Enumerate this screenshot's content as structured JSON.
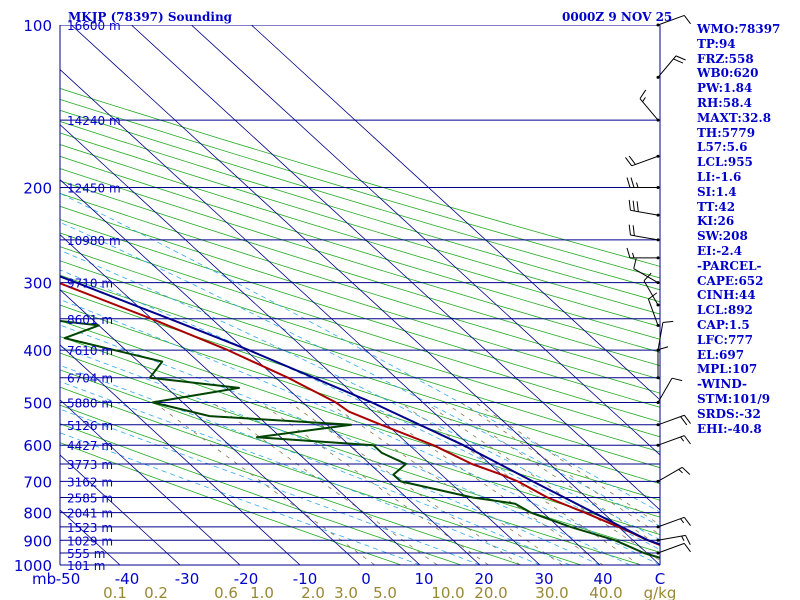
{
  "chart_data": {
    "type": "skew-t",
    "title": "MKJP (78397) Sounding",
    "datetime": "0000Z  9 NOV 25",
    "pressure_axis_title": "mb",
    "pressure_levels": [
      100,
      200,
      300,
      400,
      500,
      600,
      700,
      800,
      900,
      1000
    ],
    "height_labels": [
      {
        "p": 100,
        "label": "16600 m"
      },
      {
        "p": 150,
        "label": "14240 m"
      },
      {
        "p": 200,
        "label": "12450 m"
      },
      {
        "p": 250,
        "label": "10980 m"
      },
      {
        "p": 300,
        "label": "9710 m"
      },
      {
        "p": 350,
        "label": "8601 m"
      },
      {
        "p": 400,
        "label": "7610 m"
      },
      {
        "p": 450,
        "label": "6704 m"
      },
      {
        "p": 500,
        "label": "5880 m"
      },
      {
        "p": 550,
        "label": "5126 m"
      },
      {
        "p": 600,
        "label": "4427 m"
      },
      {
        "p": 650,
        "label": "3773 m"
      },
      {
        "p": 700,
        "label": "3162 m"
      },
      {
        "p": 750,
        "label": "2585 m"
      },
      {
        "p": 800,
        "label": "2041 m"
      },
      {
        "p": 850,
        "label": "1523 m"
      },
      {
        "p": 900,
        "label": "1029 m"
      },
      {
        "p": 950,
        "label": "555 m"
      },
      {
        "p": 1000,
        "label": "101 m"
      }
    ],
    "temperature_ticks": [
      "-50",
      "-40",
      "-30",
      "-20",
      "-10",
      "0",
      "10",
      "20",
      "30",
      "40",
      "C"
    ],
    "mixing_ratio_labels": [
      "0.1",
      "0.2",
      "0.6",
      "1.0",
      "2.0",
      "3.0",
      "5.0",
      "10.0",
      "20.0",
      "30.0",
      "40.0",
      "g/kg"
    ],
    "series": [
      {
        "name": "Temperature",
        "color": "#aa0000",
        "points": [
          {
            "p": 1000,
            "t": 31.0
          },
          {
            "p": 980,
            "t": 28.0
          },
          {
            "p": 950,
            "t": 26.0
          },
          {
            "p": 925,
            "t": 24.0
          },
          {
            "p": 900,
            "t": 22.5
          },
          {
            "p": 850,
            "t": 20.0
          },
          {
            "p": 800,
            "t": 17.0
          },
          {
            "p": 750,
            "t": 13.5
          },
          {
            "p": 700,
            "t": 11.5
          },
          {
            "p": 680,
            "t": 10.0
          },
          {
            "p": 650,
            "t": 7.0
          },
          {
            "p": 600,
            "t": 4.0
          },
          {
            "p": 550,
            "t": -1.0
          },
          {
            "p": 520,
            "t": -4.0
          },
          {
            "p": 500,
            "t": -4.5
          },
          {
            "p": 450,
            "t": -8.0
          },
          {
            "p": 400,
            "t": -13.0
          },
          {
            "p": 350,
            "t": -20.0
          },
          {
            "p": 300,
            "t": -29.0
          },
          {
            "p": 250,
            "t": -40.0
          },
          {
            "p": 200,
            "t": -52.0
          },
          {
            "p": 175,
            "t": -58.0
          },
          {
            "p": 150,
            "t": -66.0
          },
          {
            "p": 125,
            "t": -72.0
          },
          {
            "p": 110,
            "t": -74.0
          },
          {
            "p": 100,
            "t": -71.0
          }
        ]
      },
      {
        "name": "Dewpoint",
        "color": "#004400",
        "points": [
          {
            "p": 1000,
            "t": 24.0
          },
          {
            "p": 950,
            "t": 19.5
          },
          {
            "p": 900,
            "t": 17.0
          },
          {
            "p": 850,
            "t": 12.0
          },
          {
            "p": 800,
            "t": 8.0
          },
          {
            "p": 770,
            "t": 7.0
          },
          {
            "p": 750,
            "t": 1.0
          },
          {
            "p": 700,
            "t": -8.0
          },
          {
            "p": 680,
            "t": -8.0
          },
          {
            "p": 650,
            "t": -4.0
          },
          {
            "p": 620,
            "t": -6.0
          },
          {
            "p": 600,
            "t": -6.0
          },
          {
            "p": 580,
            "t": -24.0
          },
          {
            "p": 550,
            "t": -6.0
          },
          {
            "p": 530,
            "t": -28.0
          },
          {
            "p": 500,
            "t": -35.0
          },
          {
            "p": 470,
            "t": -18.0
          },
          {
            "p": 450,
            "t": -31.0
          },
          {
            "p": 420,
            "t": -26.0
          },
          {
            "p": 380,
            "t": -38.0
          },
          {
            "p": 360,
            "t": -30.0
          },
          {
            "p": 345,
            "t": -43.0
          },
          {
            "p": 300,
            "t": -44.0
          },
          {
            "p": 260,
            "t": -51.0
          },
          {
            "p": 200,
            "t": -72.0
          },
          {
            "p": 185,
            "t": -80.0
          },
          {
            "p": 170,
            "t": -85.0
          },
          {
            "p": 150,
            "t": -87.0
          },
          {
            "p": 130,
            "t": -91.0
          },
          {
            "p": 110,
            "t": -89.0
          },
          {
            "p": 100,
            "t": -85.0
          }
        ]
      },
      {
        "name": "Parcel",
        "color": "#00008b",
        "points": [
          {
            "p": 1000,
            "t": 31.0
          },
          {
            "p": 950,
            "t": 26.5
          },
          {
            "p": 900,
            "t": 22.5
          },
          {
            "p": 850,
            "t": 20.5
          },
          {
            "p": 800,
            "t": 18.5
          },
          {
            "p": 700,
            "t": 14.0
          },
          {
            "p": 600,
            "t": 9.0
          },
          {
            "p": 500,
            "t": 1.5
          },
          {
            "p": 400,
            "t": -9.5
          },
          {
            "p": 350,
            "t": -17.0
          },
          {
            "p": 300,
            "t": -26.0
          },
          {
            "p": 250,
            "t": -37.0
          },
          {
            "p": 200,
            "t": -51.0
          },
          {
            "p": 150,
            "t": -69.0
          },
          {
            "p": 125,
            "t": -79.0
          },
          {
            "p": 110,
            "t": -86.0
          }
        ]
      }
    ],
    "wind_barbs": [
      {
        "p": 100,
        "dir": 70,
        "spd": 10
      },
      {
        "p": 125,
        "dir": 40,
        "spd": 20
      },
      {
        "p": 150,
        "dir": 320,
        "spd": 15
      },
      {
        "p": 175,
        "dir": 250,
        "spd": 20
      },
      {
        "p": 200,
        "dir": 270,
        "spd": 25
      },
      {
        "p": 225,
        "dir": 280,
        "spd": 30
      },
      {
        "p": 250,
        "dir": 280,
        "spd": 20
      },
      {
        "p": 270,
        "dir": 270,
        "spd": 15
      },
      {
        "p": 300,
        "dir": 300,
        "spd": 10
      },
      {
        "p": 330,
        "dir": 330,
        "spd": 10
      },
      {
        "p": 360,
        "dir": 340,
        "spd": 10
      },
      {
        "p": 400,
        "dir": 10,
        "spd": 10
      },
      {
        "p": 450,
        "dir": 0,
        "spd": 10
      },
      {
        "p": 500,
        "dir": 30,
        "spd": 10
      },
      {
        "p": 550,
        "dir": 70,
        "spd": 20
      },
      {
        "p": 600,
        "dir": 70,
        "spd": 15
      },
      {
        "p": 700,
        "dir": 60,
        "spd": 15
      },
      {
        "p": 850,
        "dir": 70,
        "spd": 15
      },
      {
        "p": 900,
        "dir": 80,
        "spd": 15
      },
      {
        "p": 950,
        "dir": 70,
        "spd": 10
      }
    ]
  },
  "indices": [
    "WMO:78397",
    "TP:94",
    "FRZ:558",
    "WB0:620",
    "PW:1.84",
    "RH:58.4",
    "MAXT:32.8",
    "TH:5779",
    "L57:5.6",
    "LCL:955",
    "LI:-1.6",
    "SI:1.4",
    "TT:42",
    "KI:26",
    "SW:208",
    "EI:-2.4",
    "-PARCEL-",
    "CAPE:652",
    "CINH:44",
    "LCL:892",
    "CAP:1.5",
    "LFC:777",
    "EL:697",
    "MPL:107",
    "-WIND-",
    "STM:101/9",
    "SRDS:-32",
    "EHI:-40.8"
  ]
}
